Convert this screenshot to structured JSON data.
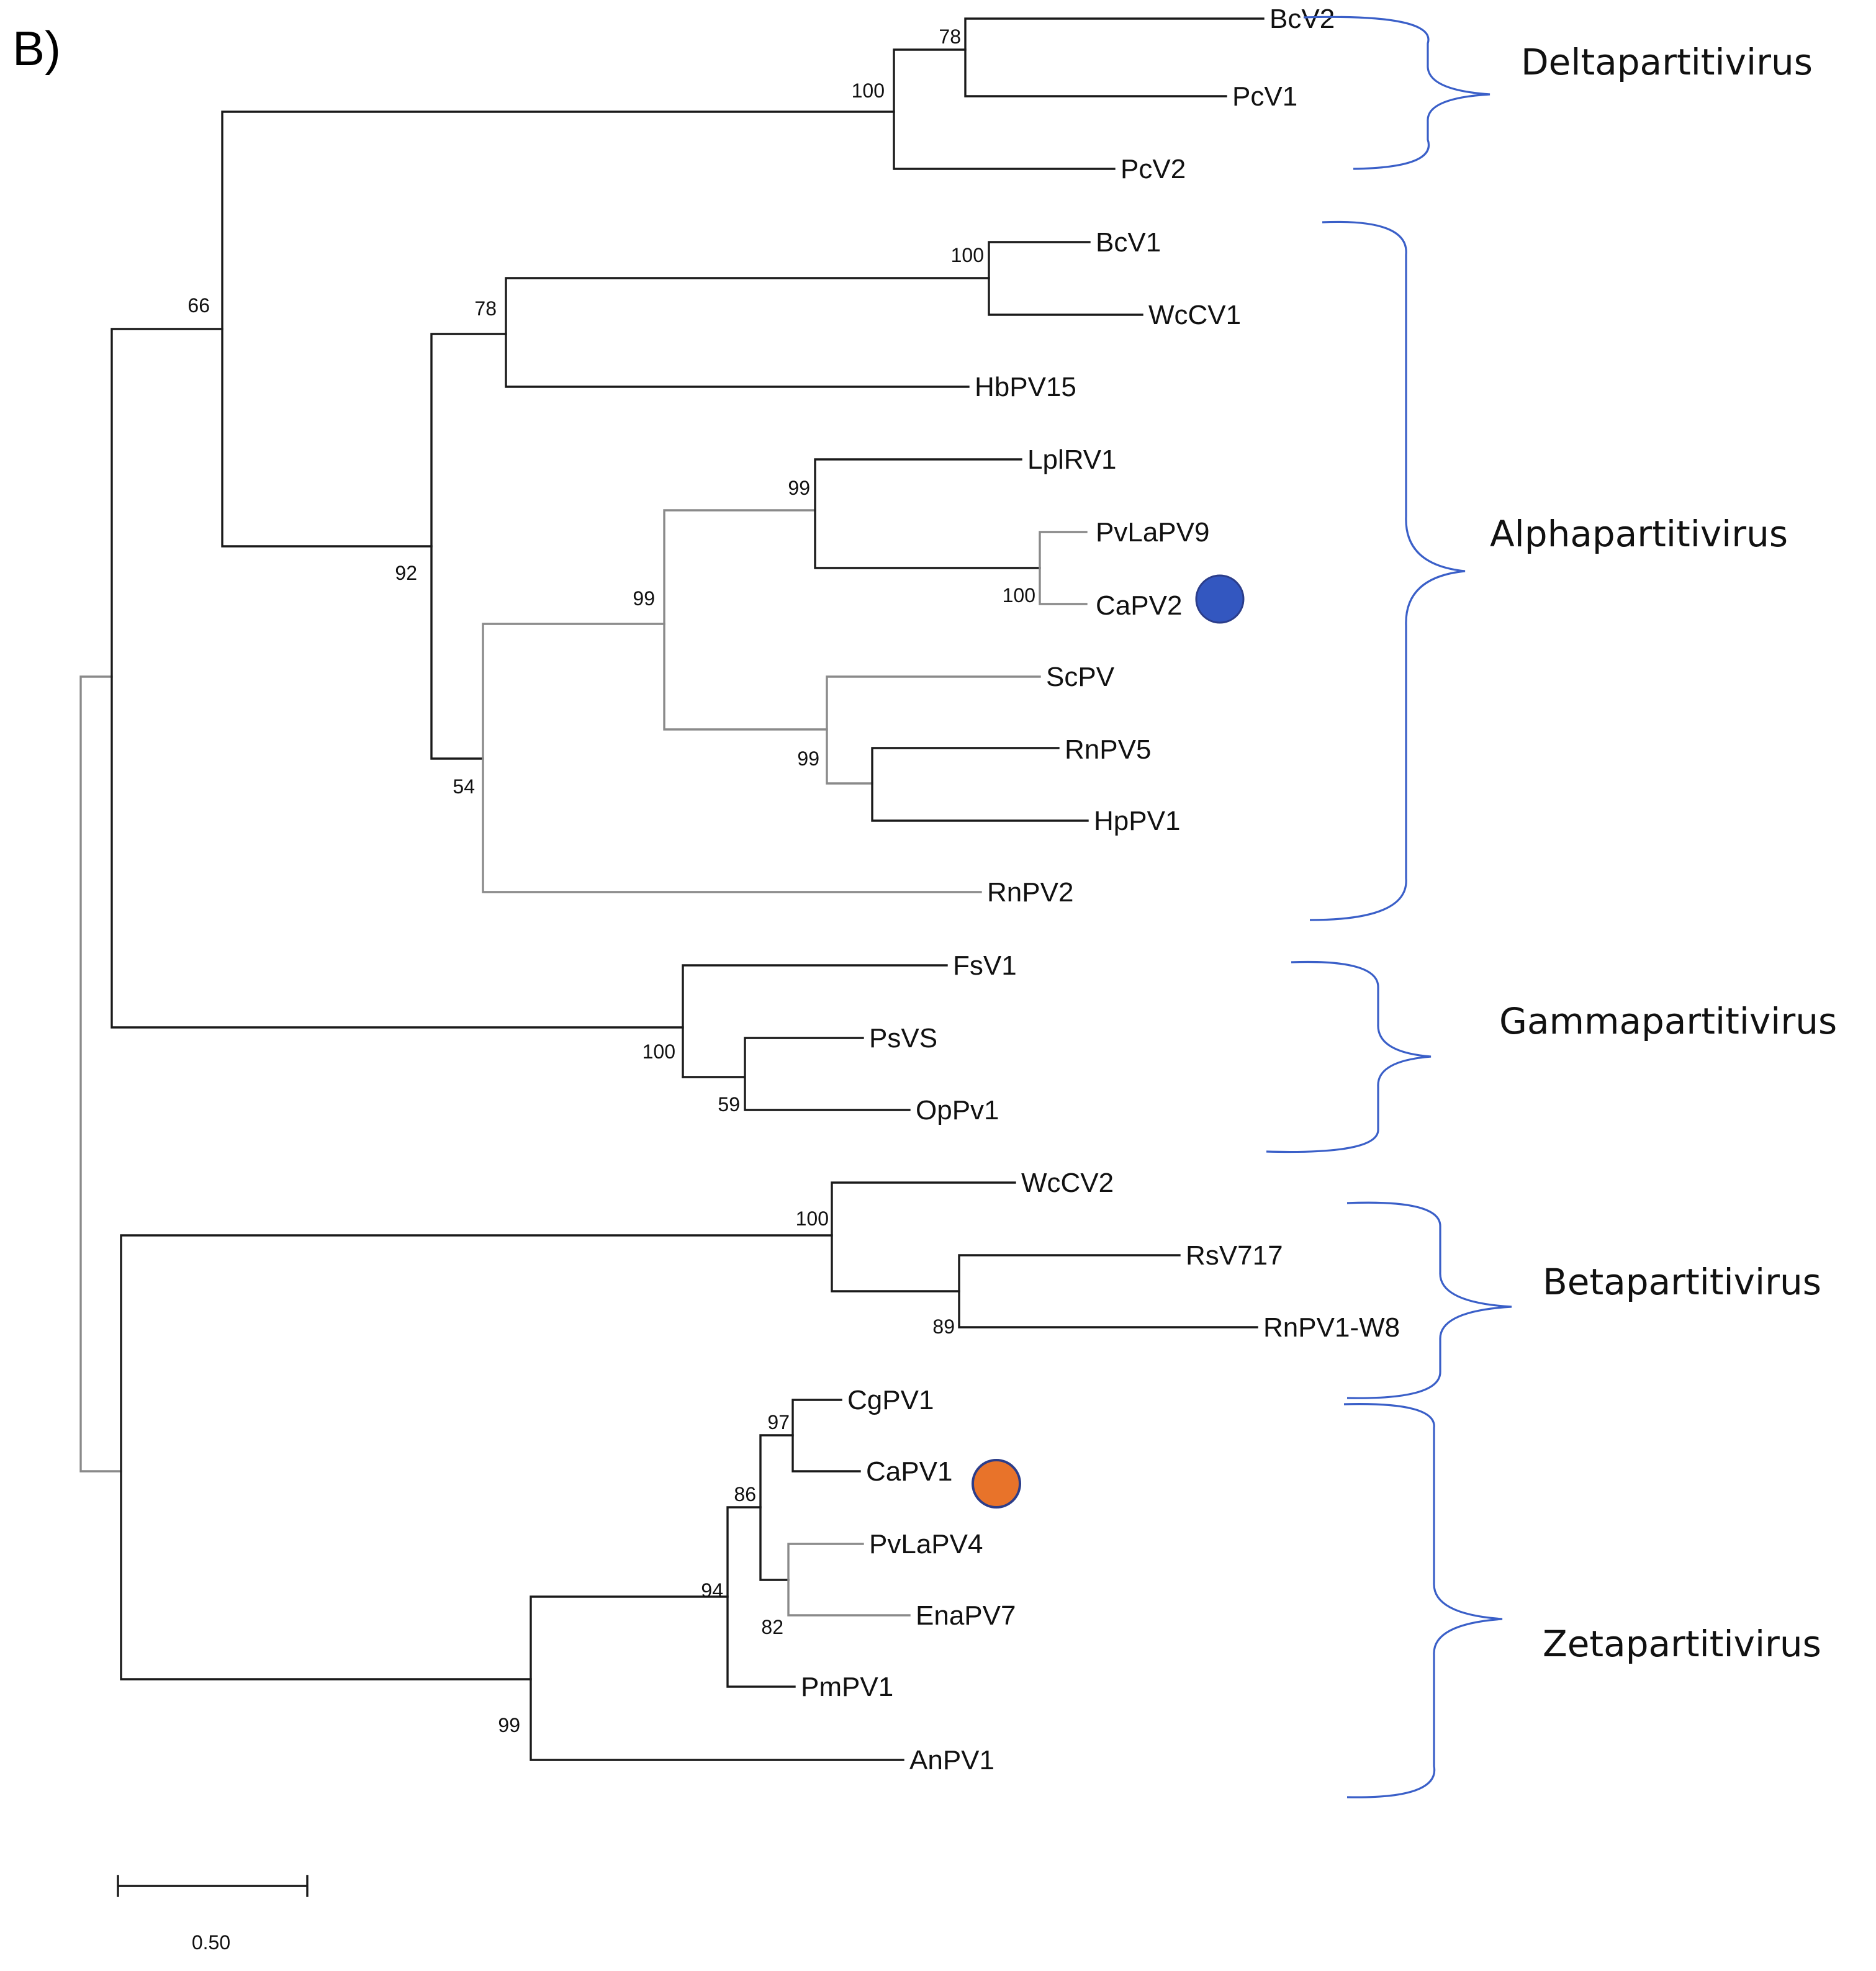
{
  "panel_label": "B)",
  "colors": {
    "branch": "#1a1a1a",
    "brace": "#3a5fc8",
    "marker_blue": "#3357c0",
    "marker_orange": "#e8732a",
    "marker_stroke": "#2b3d8a"
  },
  "leaves": {
    "BcV2": "BcV2",
    "PcV1": "PcV1",
    "PcV2": "PcV2",
    "BcV1": "BcV1",
    "WcCV1": "WcCV1",
    "HbPV15": "HbPV15",
    "LplRV1": "LplRV1",
    "PvLaPV9": "PvLaPV9",
    "CaPV2": "CaPV2",
    "ScPV": "ScPV",
    "RnPV5": "RnPV5",
    "HpPV1": "HpPV1",
    "RnPV2": "RnPV2",
    "FsV1": "FsV1",
    "PsVS": "PsVS",
    "OpPv1": "OpPv1",
    "WcCV2": "WcCV2",
    "RsV717": "RsV717",
    "RnPV1W8": "RnPV1-W8",
    "CgPV1": "CgPV1",
    "CaPV1": "CaPV1",
    "PvLaPV4": "PvLaPV4",
    "EnaPV7": "EnaPV7",
    "PmPV1": "PmPV1",
    "AnPV1": "AnPV1"
  },
  "bootstrap": {
    "n_bcv2_pcv1": "78",
    "n_delta": "100",
    "n_root_upper": "66",
    "n_bcv1_wccv1": "100",
    "n_hb_group": "78",
    "n_alpha": "92",
    "n_lpl_group": "99",
    "n_pvla9_capv2": "100",
    "n_alpha_inner": "99",
    "n_sc_group": "99",
    "n_alpha_lower": "54",
    "n_gamma": "100",
    "n_psvs_oppv1": "59",
    "n_beta": "100",
    "n_rsv_rnpv1": "89",
    "n_cg_capv1": "97",
    "n_zeta_inner": "86",
    "n_pvla4_ena": "82",
    "n_zeta_mid": "94",
    "n_zeta": "99"
  },
  "clades": {
    "delta": "Deltapartitivirus",
    "alpha": "Alphapartitivirus",
    "gamma": "Gammapartitivirus",
    "beta": "Betapartitivirus",
    "zeta": "Zetapartitivirus"
  },
  "scale_bar": {
    "label": "0.50"
  }
}
